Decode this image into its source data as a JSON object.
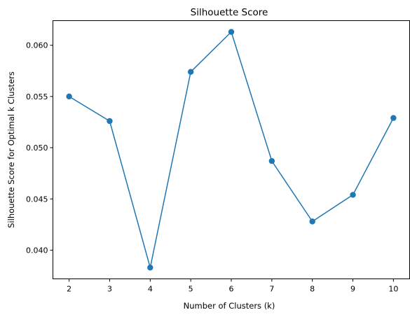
{
  "chart_data": {
    "type": "line",
    "title": "Silhouette Score",
    "xlabel": "Number of Clusters (k)",
    "ylabel": "Silhouette Score for Optimal k Clusters",
    "x": [
      2,
      3,
      4,
      5,
      6,
      7,
      8,
      9,
      10
    ],
    "series": [
      {
        "values": [
          0.055,
          0.0526,
          0.0383,
          0.0574,
          0.0613,
          0.0487,
          0.0428,
          0.0454,
          0.0529
        ],
        "color": "#1f77b4",
        "marker": "circle"
      }
    ],
    "xticks": [
      "2",
      "3",
      "4",
      "5",
      "6",
      "7",
      "8",
      "9",
      "10"
    ],
    "yticks": [
      "0.040",
      "0.045",
      "0.050",
      "0.055",
      "0.060"
    ],
    "ytick_values": [
      0.04,
      0.045,
      0.05,
      0.055,
      0.06
    ],
    "xlim": [
      1.6,
      10.4
    ],
    "ylim": [
      0.0372,
      0.0624
    ],
    "grid": false,
    "legend": "none"
  }
}
